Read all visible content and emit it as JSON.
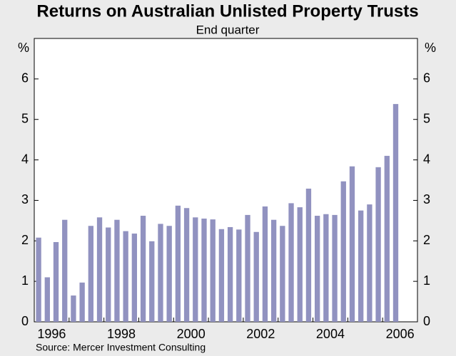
{
  "chart_data": {
    "type": "bar",
    "title": "Returns on Australian Unlisted Property Trusts",
    "subtitle": "End quarter",
    "y_unit": "%",
    "source": "Source: Mercer Investment Consulting",
    "categories": [
      null,
      "1996",
      null,
      null,
      null,
      null,
      null,
      null,
      null,
      "1998",
      null,
      null,
      null,
      null,
      null,
      null,
      null,
      "2000",
      null,
      null,
      null,
      null,
      null,
      null,
      null,
      "2002",
      null,
      null,
      null,
      null,
      null,
      null,
      null,
      "2004",
      null,
      null,
      null,
      null,
      null,
      null,
      null,
      "2006"
    ],
    "values": [
      2.08,
      1.1,
      1.97,
      2.52,
      0.65,
      0.97,
      2.37,
      2.58,
      2.33,
      2.52,
      2.24,
      2.18,
      2.62,
      1.99,
      2.42,
      2.37,
      2.87,
      2.81,
      2.58,
      2.55,
      2.53,
      2.29,
      2.34,
      2.28,
      2.64,
      2.22,
      2.85,
      2.52,
      2.37,
      2.93,
      2.83,
      3.29,
      2.62,
      2.66,
      2.64,
      3.47,
      3.84,
      2.75,
      2.9,
      3.82,
      4.1,
      5.38
    ],
    "color": "#9192c0",
    "ylim": [
      0,
      7
    ],
    "yticks": [
      0,
      1,
      2,
      3,
      4,
      5,
      6
    ],
    "grid": false
  }
}
